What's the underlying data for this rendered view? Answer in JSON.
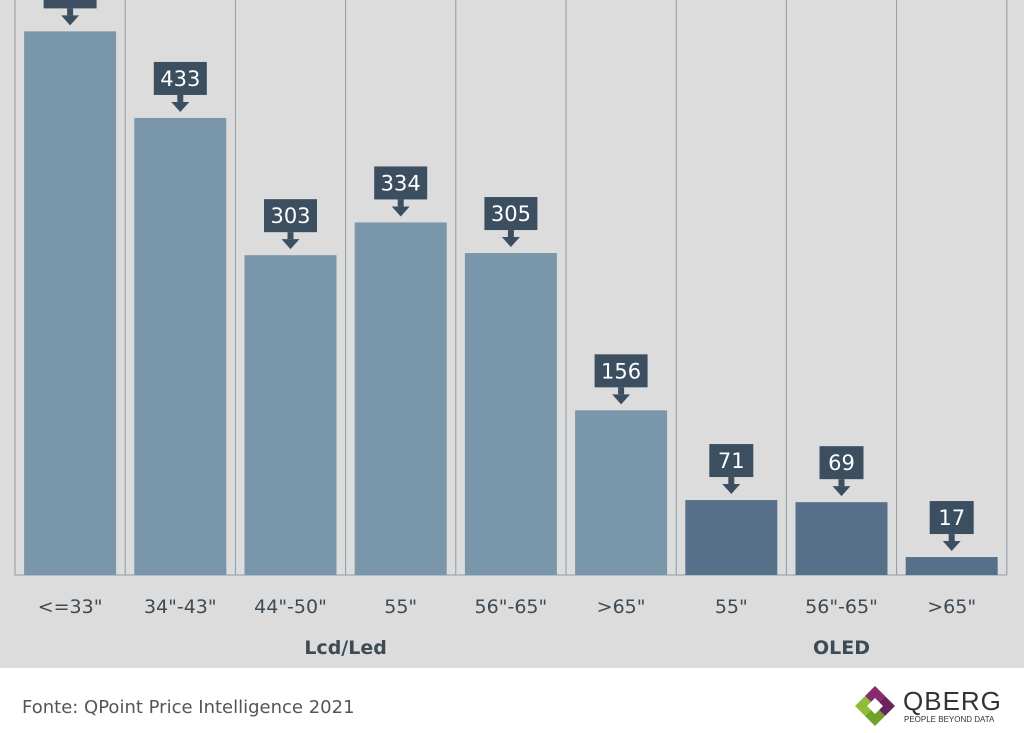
{
  "chart_data": {
    "type": "bar",
    "categories": [
      "<=33\"",
      "34\"-43\"",
      "44\"-50\"",
      "55\"",
      "56\"-65\"",
      ">65\"",
      "55\"",
      "56\"-65\"",
      ">65\""
    ],
    "values": [
      515,
      433,
      303,
      334,
      305,
      156,
      71,
      69,
      17
    ],
    "groups": [
      {
        "label": "Lcd/Led",
        "start": 0,
        "end": 5,
        "color": "#7a96aa"
      },
      {
        "label": "OLED",
        "start": 6,
        "end": 8,
        "color": "#56708a"
      }
    ],
    "label_box_color": "#3c4f60",
    "background": "#dcdcdc",
    "gridline_color": "#8c9aa6",
    "ylim": [
      0,
      540
    ],
    "grid": "vertical separators"
  },
  "footer": {
    "source": "Fonte: QPoint Price Intelligence 2021",
    "logo_name": "QBERG",
    "logo_tagline": "PEOPLE BEYOND DATA"
  }
}
